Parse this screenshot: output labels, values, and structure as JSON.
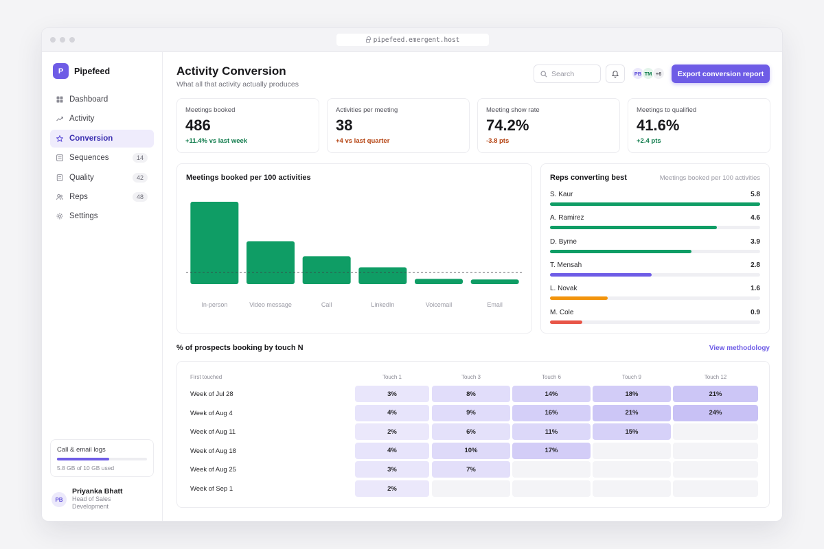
{
  "browser": {
    "url": "pipefeed.emergent.host"
  },
  "brand": {
    "logo_letter": "P",
    "name": "Pipefeed",
    "accent": "#6e5ce6"
  },
  "sidebar": {
    "items": [
      {
        "label": "Dashboard",
        "icon": "grid-icon",
        "badge": ""
      },
      {
        "label": "Activity",
        "icon": "trend-icon",
        "badge": ""
      },
      {
        "label": "Conversion",
        "icon": "star-icon",
        "badge": "",
        "active": true
      },
      {
        "label": "Sequences",
        "icon": "list-icon",
        "badge": "14"
      },
      {
        "label": "Quality",
        "icon": "document-icon",
        "badge": "42"
      },
      {
        "label": "Reps",
        "icon": "users-icon",
        "badge": "48"
      },
      {
        "label": "Settings",
        "icon": "gear-icon",
        "badge": ""
      }
    ],
    "storage": {
      "title": "Call & email logs",
      "used_fraction": 0.58,
      "text": "5.8 GB of 10 GB used"
    },
    "user": {
      "initials": "PB",
      "name": "Priyanka Bhatt",
      "role": "Head of Sales Development"
    }
  },
  "header": {
    "title": "Activity Conversion",
    "subtitle": "What all that activity actually produces",
    "search_placeholder": "Search",
    "avatars": [
      {
        "initials": "PB",
        "bg": "#ece9fb",
        "fg": "#5b4bd8"
      },
      {
        "initials": "TM",
        "bg": "#e3f4ea",
        "fg": "#0d7a4a"
      },
      {
        "initials": "+6",
        "bg": "#f1f1f4",
        "fg": "#52525b"
      }
    ],
    "export_label": "Export conversion report"
  },
  "kpis": [
    {
      "label": "Meetings booked",
      "value": "486",
      "delta": "+11.4% vs last week",
      "tone": "pos"
    },
    {
      "label": "Activities per meeting",
      "value": "38",
      "delta": "+4 vs last quarter",
      "tone": "neg"
    },
    {
      "label": "Meeting show rate",
      "value": "74.2%",
      "delta": "-3.8 pts",
      "tone": "neg"
    },
    {
      "label": "Meetings to qualified",
      "value": "41.6%",
      "delta": "+2.4 pts",
      "tone": "pos"
    }
  ],
  "chart_data": {
    "type": "bar",
    "title": "Meetings booked per 100 activities",
    "categories": [
      "In-person",
      "Video message",
      "Call",
      "LinkedIn",
      "Voicemail",
      "Email"
    ],
    "values": [
      14.2,
      7.4,
      4.8,
      2.9,
      0.9,
      0.8
    ],
    "reference_line": 2,
    "color": "#0f9d65"
  },
  "reps": {
    "title": "Reps converting best",
    "subtitle": "Meetings booked per 100 activities",
    "max": 5.8,
    "items": [
      {
        "name": "S. Kaur",
        "value": 5.8,
        "color": "#0f9d65"
      },
      {
        "name": "A. Ramirez",
        "value": 4.6,
        "color": "#0f9d65"
      },
      {
        "name": "D. Byrne",
        "value": 3.9,
        "color": "#0f9d65"
      },
      {
        "name": "T. Mensah",
        "value": 2.8,
        "color": "#6e5ce6"
      },
      {
        "name": "L. Novak",
        "value": 1.6,
        "color": "#f2940c"
      },
      {
        "name": "M. Cole",
        "value": 0.9,
        "color": "#e85547"
      }
    ]
  },
  "heatmap": {
    "title": "% of prospects booking by touch N",
    "link": "View methodology",
    "row_header": "First touched",
    "columns": [
      "Touch 1",
      "Touch 3",
      "Touch 6",
      "Touch 9",
      "Touch 12"
    ],
    "rows": [
      {
        "label": "Week of Jul 28",
        "values": [
          "3%",
          "8%",
          "14%",
          "18%",
          "21%"
        ]
      },
      {
        "label": "Week of Aug 4",
        "values": [
          "4%",
          "9%",
          "16%",
          "21%",
          "24%"
        ]
      },
      {
        "label": "Week of Aug 11",
        "values": [
          "2%",
          "6%",
          "11%",
          "15%",
          ""
        ]
      },
      {
        "label": "Week of Aug 18",
        "values": [
          "4%",
          "10%",
          "17%",
          "",
          ""
        ]
      },
      {
        "label": "Week of Aug 25",
        "values": [
          "3%",
          "7%",
          "",
          "",
          ""
        ]
      },
      {
        "label": "Week of Sep 1",
        "values": [
          "2%",
          "",
          "",
          "",
          ""
        ]
      }
    ]
  }
}
